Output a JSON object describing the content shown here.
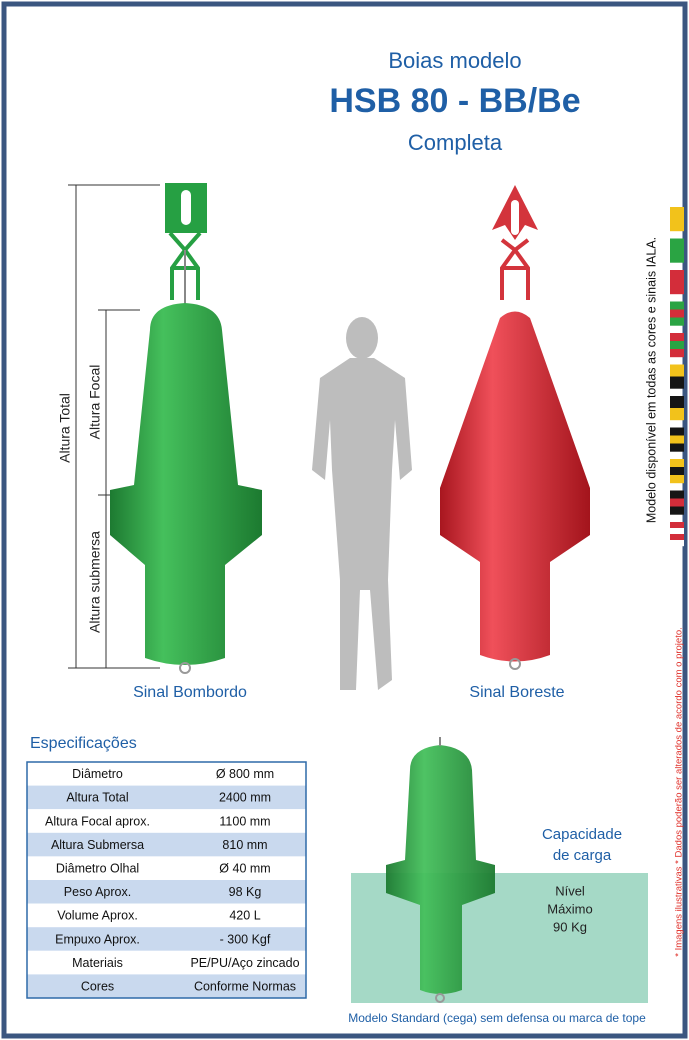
{
  "header": {
    "line1": "Boias modelo",
    "title": "HSB 80 - BB/Be",
    "subtitle": "Completa"
  },
  "dimensions": {
    "total": "Altura Total",
    "focal": "Altura Focal",
    "submerged": "Altura submersa"
  },
  "buoys": [
    {
      "label": "Sinal Bombordo"
    },
    {
      "label": "Sinal Boreste"
    }
  ],
  "side_note": "Modelo disponível em todas as cores e sinais IALA.",
  "disclaimer": "* Imagens ilustrativas * Dados poderão ser alterados de acordo com o projeto.",
  "specs": {
    "title": "Especificações",
    "rows": [
      [
        "Diâmetro",
        "Ø 800 mm"
      ],
      [
        "Altura Total",
        "2400 mm"
      ],
      [
        "Altura Focal aprox.",
        "1100 mm"
      ],
      [
        "Altura Submersa",
        "810 mm"
      ],
      [
        "Diâmetro Olhal",
        "Ø 40 mm"
      ],
      [
        "Peso Aprox.",
        "98 Kg"
      ],
      [
        "Volume Aprox.",
        "420 L"
      ],
      [
        "Empuxo Aprox.",
        "- 300 Kgf"
      ],
      [
        "Materiais",
        "PE/PU/Aço zincado"
      ],
      [
        "Cores",
        "Conforme Normas"
      ]
    ]
  },
  "capacity": {
    "title": [
      "Capacidade",
      "de carga"
    ],
    "level": [
      "Nível",
      "Máximo",
      "90 Kg"
    ]
  },
  "caption": "Modelo Standard (cega) sem defensa ou marca de tope"
}
